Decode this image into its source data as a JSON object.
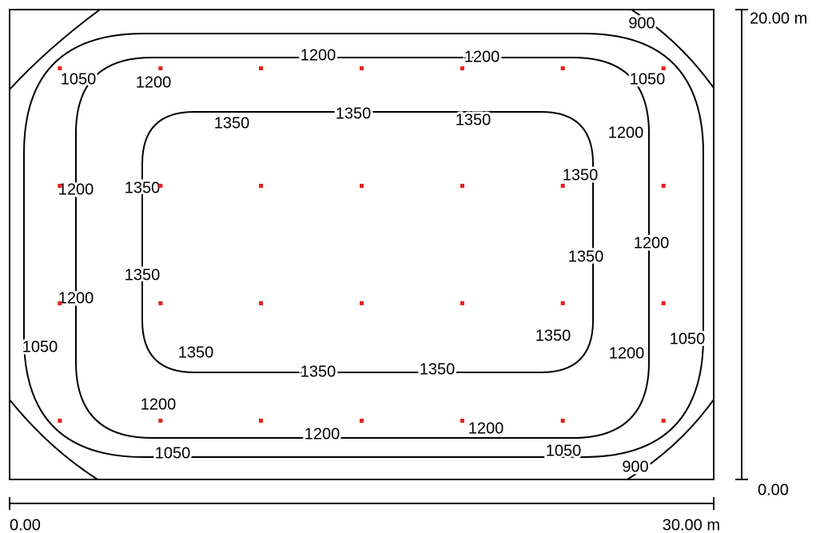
{
  "chart_data": {
    "type": "contour",
    "levels": [
      900,
      1050,
      1200,
      1350
    ],
    "points": {
      "x": [
        2.14,
        6.43,
        10.71,
        15,
        19.29,
        23.57,
        27.86
      ],
      "y": [
        2.5,
        7.5,
        12.5,
        17.5
      ],
      "color": "#e8201c"
    },
    "xlim": [
      0,
      30
    ],
    "ylim": [
      0,
      20
    ],
    "xticks": [
      {
        "value": 0,
        "label": "0.00"
      },
      {
        "value": 30,
        "label": "30.00 m"
      }
    ],
    "yticks": [
      {
        "value": 0,
        "label": "0.00"
      },
      {
        "value": 20,
        "label": "20.00 m"
      }
    ],
    "line_color": "#000000"
  }
}
